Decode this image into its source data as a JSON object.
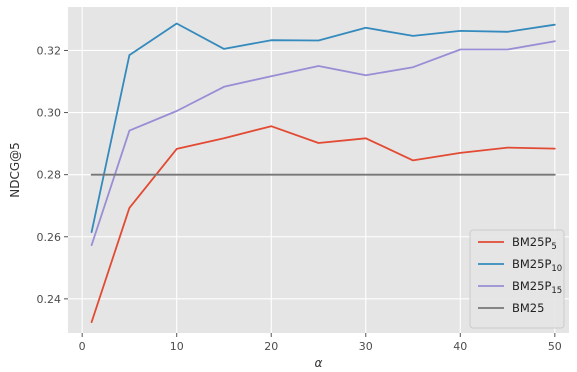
{
  "chart_data": {
    "type": "line",
    "title": "",
    "xlabel": "α",
    "ylabel": "NDCG@5",
    "xlim": [
      -1.5,
      51.5
    ],
    "ylim": [
      0.229,
      0.334
    ],
    "xticks": [
      0,
      10,
      20,
      30,
      40,
      50
    ],
    "yticks": [
      0.24,
      0.26,
      0.28,
      0.3,
      0.32
    ],
    "ytick_labels": [
      "0.24",
      "0.26",
      "0.28",
      "0.30",
      "0.32"
    ],
    "xtick_labels": [
      "0",
      "10",
      "20",
      "30",
      "40",
      "50"
    ],
    "grid": true,
    "legend_position": "bottom-right",
    "x": [
      1,
      5,
      10,
      15,
      20,
      25,
      30,
      35,
      40,
      45,
      50
    ],
    "series": [
      {
        "name": "BM25P",
        "subscript": "5",
        "color": "#E24A33",
        "values": [
          0.2325,
          0.2693,
          0.2883,
          0.2917,
          0.2956,
          0.2902,
          0.2917,
          0.2846,
          0.287,
          0.2887,
          0.2884
        ]
      },
      {
        "name": "BM25P",
        "subscript": "10",
        "color": "#348ABD",
        "values": [
          0.2615,
          0.3185,
          0.3287,
          0.3205,
          0.3233,
          0.3232,
          0.3273,
          0.3247,
          0.3263,
          0.326,
          0.3283
        ]
      },
      {
        "name": "BM25P",
        "subscript": "15",
        "color": "#988ED5",
        "values": [
          0.2573,
          0.2942,
          0.3005,
          0.3083,
          0.3117,
          0.315,
          0.312,
          0.3146,
          0.3203,
          0.3203,
          0.323
        ]
      },
      {
        "name": "BM25",
        "subscript": "",
        "color": "#777777",
        "values": [
          0.28,
          0.28,
          0.28,
          0.28,
          0.28,
          0.28,
          0.28,
          0.28,
          0.28,
          0.28,
          0.28
        ]
      }
    ]
  }
}
